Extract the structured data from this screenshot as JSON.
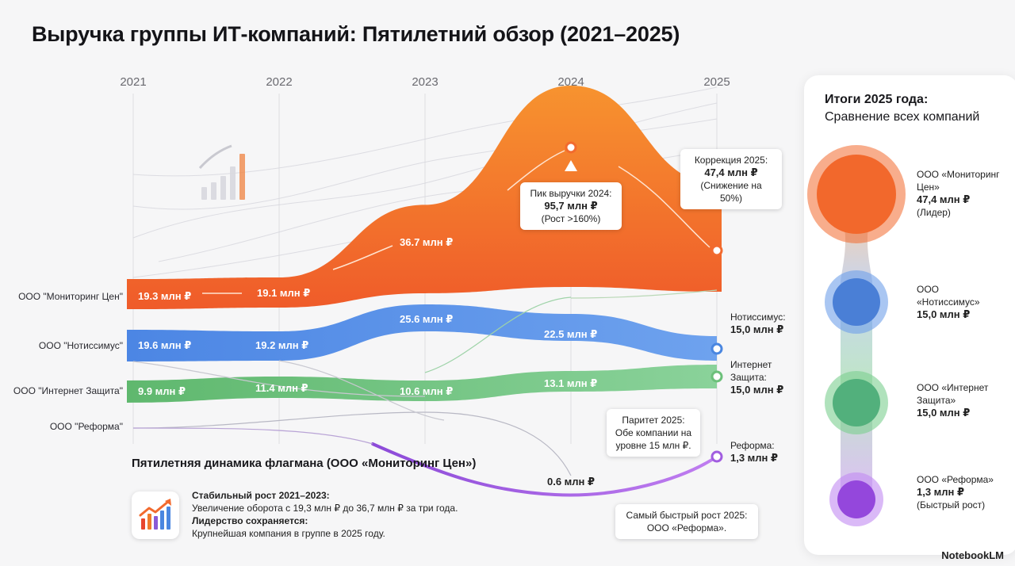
{
  "title": "Выручка группы ИТ-компаний: Пятилетний обзор (2021–2025)",
  "chart_data": {
    "type": "area",
    "title": "Выручка группы ИТ-компаний: Пятилетний обзор (2021–2025)",
    "x": [
      "2021",
      "2022",
      "2023",
      "2024",
      "2025"
    ],
    "unit": "млн ₽",
    "series": [
      {
        "name": "ООО \"Мониторинг Цен\"",
        "color": "#f26a2e",
        "values": [
          19.3,
          19.1,
          36.7,
          95.7,
          47.4
        ],
        "point_labels": [
          "19.3 млн ₽",
          "19.1 млн ₽",
          "36.7 млн ₽",
          "",
          ""
        ]
      },
      {
        "name": "ООО \"Нотиссимус\"",
        "color": "#4a86e0",
        "values": [
          19.6,
          19.2,
          25.6,
          22.5,
          15.0
        ],
        "point_labels": [
          "19.6 млн ₽",
          "19.2 млн ₽",
          "25.6 млн ₽",
          "22.5 млн ₽",
          ""
        ]
      },
      {
        "name": "ООО \"Интернет Защита\"",
        "color": "#6cc07a",
        "values": [
          9.9,
          11.4,
          10.6,
          13.1,
          15.0
        ],
        "point_labels": [
          "9.9 млн ₽",
          "11.4 млн ₽",
          "10.6 млн ₽",
          "13.1 млн ₽",
          ""
        ]
      },
      {
        "name": "ООО \"Реформа\"",
        "color": "#a15de0",
        "values": [
          null,
          null,
          null,
          0.6,
          1.3
        ],
        "point_labels": [
          "",
          "",
          "",
          "0.6 млн ₽",
          ""
        ]
      }
    ],
    "legend": "left"
  },
  "callouts": {
    "peak": {
      "line1": "Пик выручки 2024:",
      "value": "95,7 млн ₽",
      "line3": "(Рост >160%)"
    },
    "correction": {
      "line1": "Коррекция 2025:",
      "value": "47,4 млн ₽",
      "line3": "(Снижение на 50%)"
    },
    "parity": {
      "text": "Паритет 2025: Обе компании на уровне 15 млн ₽."
    },
    "fastest": {
      "text": "Самый быстрый рост 2025: ООО «Реформа»."
    }
  },
  "end_labels": {
    "notissimus": {
      "name": "Нотиссимус:",
      "value": "15,0 млн ₽"
    },
    "internet": {
      "name": "Интернет Защита:",
      "value": "15,0 млн ₽"
    },
    "reforma": {
      "name": "Реформа:",
      "value": "1,3 млн ₽"
    }
  },
  "flagship": {
    "title": "Пятилетняя динамика флагмана (ООО «Мониторинг Цен»)",
    "h1": "Стабильный рост 2021–2023:",
    "t1": "Увеличение оборота с 19,3 млн ₽ до 36,7 млн ₽ за три года.",
    "h2": "Лидерство сохраняется:",
    "t2": "Крупнейшая компания в группе в 2025 году."
  },
  "panel": {
    "title_bold": "Итоги 2025 года:",
    "title_sub": "Сравнение всех компаний",
    "items": [
      {
        "name": "ООО «Мониторинг Цен»",
        "value": "47,4 млн ₽",
        "note": "(Лидер)",
        "color": "#f26a2e"
      },
      {
        "name": "ООО «Нотиссимус»",
        "value": "15,0 млн ₽",
        "note": "",
        "color": "#4a86e0"
      },
      {
        "name": "ООО «Интернет Защита»",
        "value": "15,0 млн ₽",
        "note": "",
        "color": "#5bbf80"
      },
      {
        "name": "ООО «Реформа»",
        "value": "1,3 млн ₽",
        "note": "(Быстрый рост)",
        "color": "#9b50e0"
      }
    ]
  },
  "brand": "NotebookLM"
}
